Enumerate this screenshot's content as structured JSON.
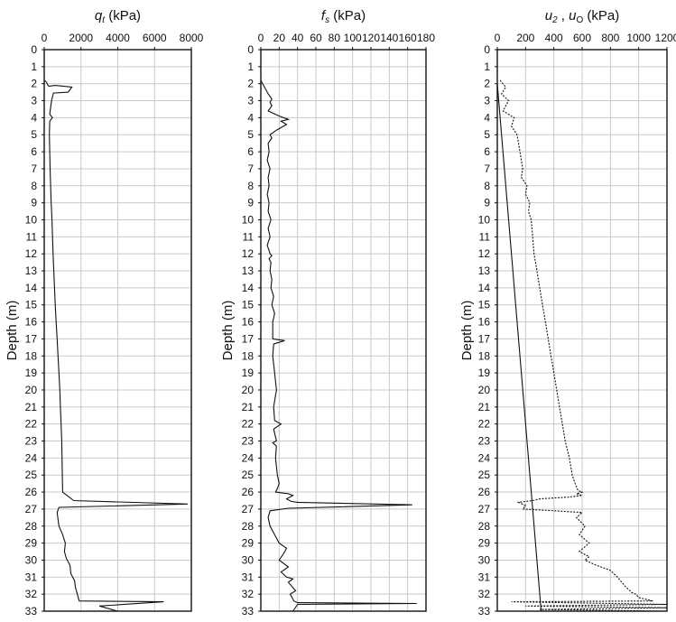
{
  "chart_data": [
    {
      "type": "line",
      "title_symbol": "q",
      "title_sub": "t",
      "title_unit": " (kPa)",
      "ylabel": "Depth (m)",
      "xlim": [
        0,
        8000
      ],
      "x_ticks": [
        "0",
        "2000",
        "4000",
        "6000",
        "8000"
      ],
      "ylim": [
        0,
        33
      ],
      "y_ticks": [
        "0",
        "1",
        "2",
        "3",
        "4",
        "5",
        "6",
        "7",
        "8",
        "9",
        "10",
        "11",
        "12",
        "13",
        "14",
        "15",
        "16",
        "17",
        "18",
        "19",
        "20",
        "21",
        "22",
        "23",
        "24",
        "25",
        "26",
        "27",
        "28",
        "29",
        "30",
        "31",
        "32",
        "33"
      ],
      "grid": true,
      "series": [
        {
          "style": "solid",
          "x": [
            0,
            120,
            200,
            250,
            600,
            1500,
            1300,
            500,
            400,
            300,
            450,
            300,
            280,
            300,
            320,
            350,
            380,
            420,
            450,
            480,
            520,
            560,
            600,
            650,
            700,
            750,
            800,
            850,
            880,
            920,
            950,
            1000,
            1600,
            7800,
            800,
            700,
            800,
            1000,
            1150,
            1100,
            1200,
            1400,
            1450,
            1650,
            1700,
            1800,
            1900,
            6500,
            3000,
            4000
          ],
          "y": [
            1.8,
            1.9,
            2.1,
            2.15,
            2.1,
            2.2,
            2.5,
            2.55,
            3.0,
            3.8,
            4.0,
            4.2,
            5,
            6,
            7,
            8,
            9,
            10,
            11,
            12,
            13,
            14,
            15,
            16,
            17,
            18,
            19,
            20,
            21,
            22,
            23,
            26.0,
            26.5,
            26.7,
            26.9,
            27.2,
            28.0,
            28.5,
            29.0,
            29.5,
            29.9,
            30.3,
            30.8,
            31.2,
            31.6,
            32.0,
            32.4,
            32.45,
            32.7,
            33.0
          ]
        }
      ]
    },
    {
      "type": "line",
      "title_symbol": "f",
      "title_sub": "s",
      "title_unit": " (kPa)",
      "ylabel": "Depth (m)",
      "xlim": [
        0,
        180
      ],
      "x_ticks": [
        "0",
        "20",
        "40",
        "60",
        "80",
        "100",
        "120",
        "140",
        "160",
        "180"
      ],
      "ylim": [
        0,
        33
      ],
      "y_ticks": [
        "0",
        "1",
        "2",
        "3",
        "4",
        "5",
        "6",
        "7",
        "8",
        "9",
        "10",
        "11",
        "12",
        "13",
        "14",
        "15",
        "16",
        "17",
        "18",
        "19",
        "20",
        "21",
        "22",
        "23",
        "24",
        "25",
        "26",
        "27",
        "28",
        "29",
        "30",
        "31",
        "32",
        "33"
      ],
      "grid": true,
      "series": [
        {
          "style": "solid",
          "x": [
            0,
            2,
            5,
            8,
            12,
            10,
            12,
            8,
            20,
            30,
            22,
            28,
            18,
            10,
            12,
            8,
            9,
            7,
            10,
            8,
            9,
            7,
            9,
            8,
            11,
            8,
            10,
            7,
            9,
            10,
            12,
            9,
            11,
            10,
            12,
            11,
            14,
            12,
            15,
            13,
            13,
            26,
            14,
            13,
            15,
            17,
            14,
            15,
            22,
            14,
            17,
            13,
            17,
            16,
            17,
            18,
            20,
            18,
            16,
            30,
            35,
            28,
            33,
            40,
            165,
            30,
            10,
            8,
            10,
            15,
            20,
            28,
            25,
            20,
            30,
            22,
            28,
            35,
            30,
            33,
            38,
            32,
            34,
            36,
            40,
            170,
            40,
            35
          ],
          "y": [
            1.8,
            2.0,
            2.3,
            2.6,
            2.9,
            3.1,
            3.3,
            3.6,
            3.9,
            4.1,
            4.2,
            4.4,
            4.7,
            5.0,
            5.2,
            5.5,
            6.0,
            6.5,
            7.0,
            7.5,
            8.0,
            8.5,
            9.0,
            9.5,
            10.0,
            10.5,
            11.0,
            11.5,
            11.8,
            12.0,
            12.1,
            12.3,
            12.5,
            13.0,
            13.5,
            14.0,
            14.5,
            15.0,
            15.5,
            16.0,
            17.0,
            17.1,
            17.3,
            18.0,
            19.0,
            20.0,
            21.0,
            21.8,
            22.0,
            22.3,
            23.0,
            23.1,
            23.3,
            24.0,
            24.5,
            25.0,
            25.5,
            25.8,
            26.0,
            26.1,
            26.2,
            26.4,
            26.55,
            26.6,
            26.75,
            26.95,
            27.1,
            27.5,
            28.0,
            28.5,
            29.0,
            29.3,
            29.6,
            30.0,
            30.4,
            30.7,
            31.0,
            31.1,
            31.3,
            31.5,
            31.8,
            32.0,
            32.2,
            32.4,
            32.5,
            32.55,
            32.6,
            33.0
          ]
        }
      ]
    },
    {
      "type": "line",
      "title_symbol": "u",
      "title_sub": "2",
      "title_sep": " , ",
      "title_symbol2": "u",
      "title_sub2": "O",
      "title_unit": " (kPa)",
      "ylabel": "Depth (m)",
      "xlim": [
        0,
        1200
      ],
      "x_ticks": [
        "0",
        "200",
        "400",
        "600",
        "800",
        "1000",
        "1200"
      ],
      "ylim": [
        0,
        33
      ],
      "y_ticks": [
        "0",
        "1",
        "2",
        "3",
        "4",
        "5",
        "6",
        "7",
        "8",
        "9",
        "10",
        "11",
        "12",
        "13",
        "14",
        "15",
        "16",
        "17",
        "18",
        "19",
        "20",
        "21",
        "22",
        "23",
        "24",
        "25",
        "26",
        "27",
        "28",
        "29",
        "30",
        "31",
        "32",
        "33"
      ],
      "grid": true,
      "series": [
        {
          "style": "dashed",
          "x": [
            20,
            60,
            30,
            80,
            40,
            120,
            100,
            140,
            160,
            180,
            170,
            210,
            200,
            230,
            220,
            240,
            250,
            260,
            280,
            300,
            320,
            340,
            360,
            380,
            400,
            420,
            440,
            460,
            480,
            510,
            530,
            550,
            570,
            600,
            560,
            600,
            500,
            300,
            250,
            150,
            200,
            180,
            400,
            600,
            560,
            620,
            580,
            650,
            580,
            650,
            620,
            700,
            800,
            850,
            900,
            950,
            980,
            1000,
            1050,
            1100,
            100,
            1200,
            200,
            1200,
            300,
            1150
          ],
          "y": [
            1.8,
            2.2,
            2.6,
            3.0,
            3.6,
            4.0,
            4.5,
            5.0,
            6.0,
            7.0,
            7.5,
            8.0,
            8.5,
            9.0,
            9.5,
            10.0,
            11.0,
            12.0,
            13.0,
            14.0,
            15.0,
            16.0,
            17.0,
            18.0,
            19.0,
            20.0,
            21.0,
            22.0,
            23.0,
            24.0,
            25.0,
            25.5,
            25.9,
            26.0,
            26.1,
            26.2,
            26.3,
            26.4,
            26.5,
            26.6,
            26.8,
            27.0,
            27.1,
            27.2,
            27.5,
            28.0,
            28.5,
            29.0,
            29.5,
            29.8,
            30.0,
            30.3,
            30.6,
            31.0,
            31.5,
            31.9,
            32.0,
            32.2,
            32.3,
            32.4,
            32.45,
            32.6,
            32.7,
            32.8,
            32.9,
            33.0
          ]
        },
        {
          "style": "solid",
          "x": [
            0,
            310
          ],
          "y": [
            2.0,
            33.0
          ]
        }
      ]
    }
  ]
}
